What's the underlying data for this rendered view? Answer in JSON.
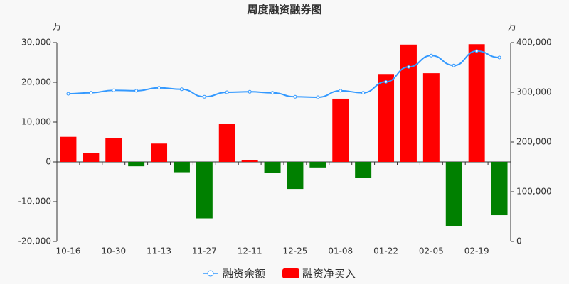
{
  "chart_data": {
    "type": "bar_line",
    "title": "周度融资融券图",
    "y_unit": "万",
    "y2_unit": "万",
    "categories": [
      "10-16",
      null,
      "10-30",
      null,
      "11-13",
      null,
      "11-27",
      null,
      "12-11",
      null,
      "12-25",
      null,
      "01-08",
      null,
      "01-22",
      null,
      "02-05",
      null,
      "02-19",
      null
    ],
    "series": [
      {
        "name": "融资余额",
        "type": "line",
        "axis": "y2",
        "color": "#3399ff",
        "values": [
          297000,
          299000,
          304000,
          303000,
          309000,
          306000,
          291000,
          300000,
          301000,
          299000,
          291000,
          290000,
          303000,
          299000,
          321000,
          351000,
          374000,
          354000,
          383000,
          370000
        ]
      },
      {
        "name": "融资净买入",
        "type": "bar",
        "color": "#ff0000",
        "negative_color": "#008000",
        "values": [
          6300,
          2300,
          5900,
          -1100,
          4600,
          -2600,
          -14200,
          9600,
          400,
          -2700,
          -6800,
          -1400,
          15900,
          -4000,
          22100,
          29500,
          22300,
          -16100,
          29600,
          -13400
        ]
      }
    ],
    "ylim": [
      -20000,
      30000
    ],
    "yticks": [
      {
        "value": -20000,
        "label": "-20,000"
      },
      {
        "value": -10000,
        "label": "-10,000"
      },
      0,
      {
        "value": 10000,
        "label": "10,000"
      },
      {
        "value": 20000,
        "label": "20,000"
      },
      {
        "value": 30000,
        "label": "30,000"
      }
    ],
    "y2lim": [
      0,
      400000
    ],
    "y2ticks": [
      0,
      {
        "value": 100000,
        "label": "100,000"
      },
      {
        "value": 200000,
        "label": "200,000"
      },
      {
        "value": 300000,
        "label": "300,000"
      },
      {
        "value": 400000,
        "label": "400,000"
      }
    ]
  }
}
